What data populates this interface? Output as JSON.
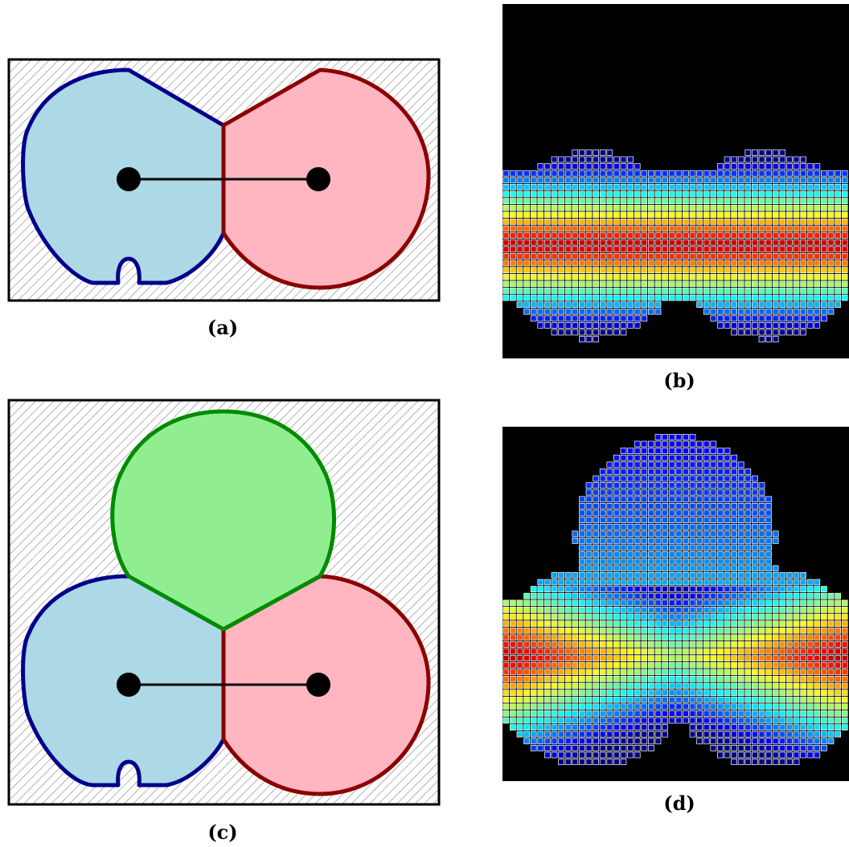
{
  "captions": {
    "a": "(a)",
    "b": "(b)",
    "c": "(c)",
    "d": "(d)"
  },
  "colors": {
    "blue_fill": "#add8e6",
    "blue_stroke": "#00008b",
    "red_fill": "#ffb6c1",
    "red_stroke": "#8b0000",
    "green_fill": "#90ee90",
    "green_stroke": "#008b00",
    "hatch": "#7f7f7f",
    "background_panel": "#000000"
  },
  "panels": {
    "a": {
      "type": "two-region diagram",
      "regions": [
        "blue",
        "red"
      ]
    },
    "b": {
      "type": "heatmap grid",
      "regions": 2
    },
    "c": {
      "type": "three-region diagram",
      "regions": [
        "blue",
        "red",
        "green"
      ]
    },
    "d": {
      "type": "heatmap grid",
      "regions": 3
    }
  }
}
